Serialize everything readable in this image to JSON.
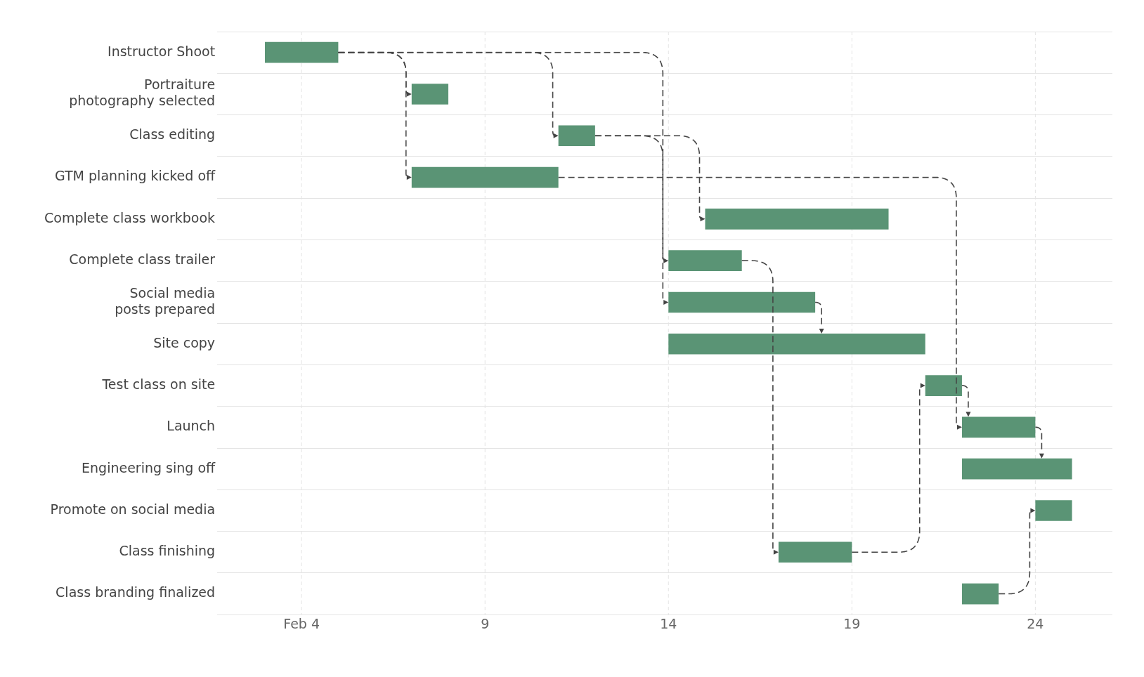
{
  "chart_data": {
    "type": "bar",
    "orientation": "horizontal",
    "grid": true,
    "legend": false,
    "categories": [
      "Instructor Shoot",
      "Portraiture\nphotography selected",
      "Class editing",
      "GTM planning kicked off",
      "Complete class workbook",
      "Complete class trailer",
      "Social media\nposts prepared",
      "Site copy",
      "Test class on site",
      "Launch",
      "Engineering sing off",
      "Promote on social media",
      "Class finishing",
      "Class branding finalized"
    ],
    "base": [
      3,
      7,
      11,
      7,
      15,
      14,
      14,
      14,
      21,
      22,
      22,
      24,
      17,
      22
    ],
    "values": [
      2,
      1,
      1,
      4,
      5,
      2,
      4,
      7,
      1,
      2,
      3,
      1,
      2,
      1
    ],
    "color": "#5a9475",
    "xlim": [
      1.7,
      26.1
    ],
    "xticks": [
      {
        "value": 4,
        "label": "Feb 4"
      },
      9,
      14,
      19,
      24
    ]
  }
}
